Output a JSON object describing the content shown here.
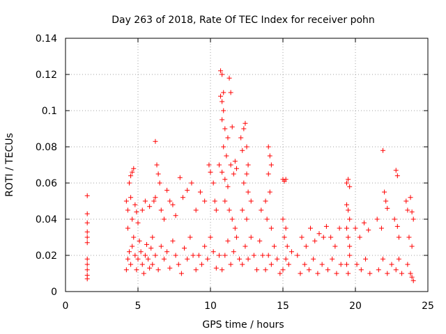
{
  "chart_data": {
    "type": "scatter",
    "title": "Day 263 of 2018, Rate Of TEC Index for receiver pohn",
    "xlabel": "GPS time / hours",
    "ylabel": "ROTI / TECUs",
    "xlim": [
      0,
      25
    ],
    "ylim": [
      0,
      0.14
    ],
    "grid": true,
    "x_ticks": [
      0,
      5,
      10,
      15,
      20,
      25
    ],
    "x_tick_labels": [
      "0",
      "5",
      "10",
      "15",
      "20",
      "25"
    ],
    "y_ticks": [
      0,
      0.02,
      0.04,
      0.06,
      0.08,
      0.1,
      0.12,
      0.14
    ],
    "y_tick_labels": [
      "0",
      "0.02",
      "0.04",
      "0.06",
      "0.08",
      "0.1",
      "0.12",
      "0.14"
    ],
    "marker": "+",
    "color": "#ff0000",
    "series": [
      {
        "name": "ROTI",
        "points": [
          [
            1.5,
            0.053
          ],
          [
            1.5,
            0.043
          ],
          [
            1.5,
            0.038
          ],
          [
            1.5,
            0.033
          ],
          [
            1.5,
            0.03
          ],
          [
            1.5,
            0.027
          ],
          [
            1.5,
            0.018
          ],
          [
            1.5,
            0.015
          ],
          [
            1.5,
            0.012
          ],
          [
            1.5,
            0.009
          ],
          [
            1.5,
            0.007
          ],
          [
            4.2,
            0.05
          ],
          [
            4.3,
            0.045
          ],
          [
            4.4,
            0.06
          ],
          [
            4.5,
            0.064
          ],
          [
            4.6,
            0.066
          ],
          [
            4.7,
            0.068
          ],
          [
            4.5,
            0.052
          ],
          [
            4.8,
            0.048
          ],
          [
            4.3,
            0.035
          ],
          [
            4.6,
            0.04
          ],
          [
            4.9,
            0.044
          ],
          [
            5.0,
            0.038
          ],
          [
            5.3,
            0.045
          ],
          [
            5.5,
            0.05
          ],
          [
            5.8,
            0.047
          ],
          [
            4.2,
            0.012
          ],
          [
            4.3,
            0.018
          ],
          [
            4.4,
            0.022
          ],
          [
            4.5,
            0.015
          ],
          [
            4.6,
            0.025
          ],
          [
            4.7,
            0.03
          ],
          [
            4.8,
            0.02
          ],
          [
            4.9,
            0.012
          ],
          [
            5.0,
            0.018
          ],
          [
            5.1,
            0.028
          ],
          [
            5.2,
            0.022
          ],
          [
            5.3,
            0.015
          ],
          [
            5.4,
            0.01
          ],
          [
            5.5,
            0.02
          ],
          [
            5.6,
            0.026
          ],
          [
            5.7,
            0.018
          ],
          [
            5.8,
            0.013
          ],
          [
            5.9,
            0.024
          ],
          [
            6.0,
            0.03
          ],
          [
            6.1,
            0.05
          ],
          [
            6.2,
            0.083
          ],
          [
            6.3,
            0.07
          ],
          [
            6.4,
            0.065
          ],
          [
            6.5,
            0.06
          ],
          [
            6.2,
            0.052
          ],
          [
            6.6,
            0.045
          ],
          [
            6.8,
            0.04
          ],
          [
            7.0,
            0.056
          ],
          [
            7.2,
            0.05
          ],
          [
            7.4,
            0.048
          ],
          [
            7.6,
            0.042
          ],
          [
            7.9,
            0.063
          ],
          [
            6.0,
            0.015
          ],
          [
            6.2,
            0.02
          ],
          [
            6.4,
            0.012
          ],
          [
            6.6,
            0.025
          ],
          [
            6.8,
            0.018
          ],
          [
            7.0,
            0.022
          ],
          [
            7.2,
            0.013
          ],
          [
            7.4,
            0.028
          ],
          [
            7.6,
            0.02
          ],
          [
            7.8,
            0.015
          ],
          [
            8.0,
            0.01
          ],
          [
            8.2,
            0.024
          ],
          [
            8.4,
            0.018
          ],
          [
            8.6,
            0.03
          ],
          [
            8.8,
            0.02
          ],
          [
            8.1,
            0.052
          ],
          [
            8.4,
            0.056
          ],
          [
            8.7,
            0.06
          ],
          [
            9.0,
            0.045
          ],
          [
            9.3,
            0.055
          ],
          [
            9.6,
            0.05
          ],
          [
            9.9,
            0.07
          ],
          [
            10.0,
            0.066
          ],
          [
            10.2,
            0.06
          ],
          [
            10.3,
            0.05
          ],
          [
            10.4,
            0.045
          ],
          [
            9.0,
            0.012
          ],
          [
            9.2,
            0.02
          ],
          [
            9.4,
            0.015
          ],
          [
            9.6,
            0.025
          ],
          [
            9.8,
            0.018
          ],
          [
            10.0,
            0.03
          ],
          [
            10.2,
            0.022
          ],
          [
            10.4,
            0.013
          ],
          [
            10.6,
            0.02
          ],
          [
            10.7,
            0.122
          ],
          [
            10.8,
            0.12
          ],
          [
            10.9,
            0.11
          ],
          [
            10.7,
            0.108
          ],
          [
            10.8,
            0.105
          ],
          [
            10.9,
            0.1
          ],
          [
            10.8,
            0.095
          ],
          [
            11.0,
            0.09
          ],
          [
            11.3,
            0.118
          ],
          [
            11.4,
            0.11
          ],
          [
            11.5,
            0.091
          ],
          [
            11.2,
            0.085
          ],
          [
            10.9,
            0.08
          ],
          [
            11.1,
            0.075
          ],
          [
            10.6,
            0.07
          ],
          [
            10.8,
            0.066
          ],
          [
            11.0,
            0.062
          ],
          [
            11.2,
            0.058
          ],
          [
            11.4,
            0.07
          ],
          [
            11.6,
            0.065
          ],
          [
            11.7,
            0.072
          ],
          [
            11.8,
            0.068
          ],
          [
            11.0,
            0.05
          ],
          [
            11.3,
            0.045
          ],
          [
            11.5,
            0.04
          ],
          [
            11.7,
            0.035
          ],
          [
            10.8,
            0.012
          ],
          [
            11.0,
            0.02
          ],
          [
            11.2,
            0.028
          ],
          [
            11.4,
            0.015
          ],
          [
            11.6,
            0.022
          ],
          [
            11.8,
            0.03
          ],
          [
            12.0,
            0.018
          ],
          [
            12.1,
            0.085
          ],
          [
            12.2,
            0.078
          ],
          [
            12.3,
            0.09
          ],
          [
            12.4,
            0.093
          ],
          [
            12.5,
            0.08
          ],
          [
            12.6,
            0.07
          ],
          [
            12.5,
            0.065
          ],
          [
            12.3,
            0.06
          ],
          [
            12.6,
            0.055
          ],
          [
            12.8,
            0.05
          ],
          [
            12.2,
            0.045
          ],
          [
            12.5,
            0.04
          ],
          [
            12.2,
            0.015
          ],
          [
            12.4,
            0.025
          ],
          [
            12.6,
            0.018
          ],
          [
            12.8,
            0.03
          ],
          [
            13.0,
            0.02
          ],
          [
            13.2,
            0.012
          ],
          [
            13.4,
            0.028
          ],
          [
            13.6,
            0.02
          ],
          [
            13.5,
            0.045
          ],
          [
            13.8,
            0.05
          ],
          [
            14.0,
            0.08
          ],
          [
            14.1,
            0.075
          ],
          [
            14.2,
            0.07
          ],
          [
            14.0,
            0.065
          ],
          [
            14.1,
            0.055
          ],
          [
            13.9,
            0.04
          ],
          [
            14.2,
            0.035
          ],
          [
            13.8,
            0.012
          ],
          [
            14.0,
            0.02
          ],
          [
            14.2,
            0.015
          ],
          [
            14.4,
            0.025
          ],
          [
            14.6,
            0.018
          ],
          [
            14.8,
            0.01
          ],
          [
            15.0,
            0.062
          ],
          [
            15.1,
            0.061
          ],
          [
            15.2,
            0.062
          ],
          [
            15.0,
            0.04
          ],
          [
            15.2,
            0.035
          ],
          [
            15.1,
            0.03
          ],
          [
            15.3,
            0.025
          ],
          [
            15.0,
            0.012
          ],
          [
            15.2,
            0.018
          ],
          [
            15.4,
            0.015
          ],
          [
            15.6,
            0.022
          ],
          [
            16.0,
            0.02
          ],
          [
            16.3,
            0.03
          ],
          [
            16.6,
            0.025
          ],
          [
            16.9,
            0.035
          ],
          [
            17.2,
            0.028
          ],
          [
            17.5,
            0.032
          ],
          [
            17.8,
            0.03
          ],
          [
            16.2,
            0.01
          ],
          [
            16.5,
            0.015
          ],
          [
            16.8,
            0.012
          ],
          [
            17.1,
            0.018
          ],
          [
            17.4,
            0.01
          ],
          [
            17.7,
            0.015
          ],
          [
            18.0,
            0.036
          ],
          [
            18.3,
            0.03
          ],
          [
            18.6,
            0.025
          ],
          [
            18.9,
            0.035
          ],
          [
            18.1,
            0.012
          ],
          [
            18.4,
            0.018
          ],
          [
            18.7,
            0.01
          ],
          [
            19.0,
            0.015
          ],
          [
            19.4,
            0.06
          ],
          [
            19.5,
            0.062
          ],
          [
            19.6,
            0.058
          ],
          [
            19.4,
            0.048
          ],
          [
            19.5,
            0.045
          ],
          [
            19.6,
            0.04
          ],
          [
            19.4,
            0.035
          ],
          [
            19.5,
            0.03
          ],
          [
            19.6,
            0.025
          ],
          [
            19.4,
            0.015
          ],
          [
            19.5,
            0.01
          ],
          [
            19.6,
            0.02
          ],
          [
            20.0,
            0.035
          ],
          [
            20.3,
            0.03
          ],
          [
            20.6,
            0.038
          ],
          [
            20.9,
            0.034
          ],
          [
            20.1,
            0.015
          ],
          [
            20.4,
            0.012
          ],
          [
            20.7,
            0.018
          ],
          [
            21.0,
            0.01
          ],
          [
            21.5,
            0.04
          ],
          [
            21.8,
            0.035
          ],
          [
            21.9,
            0.078
          ],
          [
            22.0,
            0.055
          ],
          [
            22.1,
            0.05
          ],
          [
            22.2,
            0.046
          ],
          [
            21.6,
            0.012
          ],
          [
            21.9,
            0.018
          ],
          [
            22.2,
            0.01
          ],
          [
            22.5,
            0.015
          ],
          [
            22.8,
            0.067
          ],
          [
            22.9,
            0.064
          ],
          [
            22.7,
            0.04
          ],
          [
            22.9,
            0.036
          ],
          [
            23.0,
            0.03
          ],
          [
            22.8,
            0.012
          ],
          [
            23.0,
            0.018
          ],
          [
            23.2,
            0.01
          ],
          [
            23.5,
            0.05
          ],
          [
            23.6,
            0.045
          ],
          [
            23.8,
            0.052
          ],
          [
            23.9,
            0.044
          ],
          [
            24.0,
            0.04
          ],
          [
            23.7,
            0.03
          ],
          [
            23.9,
            0.025
          ],
          [
            23.6,
            0.015
          ],
          [
            23.8,
            0.01
          ],
          [
            24.0,
            0.006
          ],
          [
            23.9,
            0.008
          ]
        ]
      }
    ]
  }
}
